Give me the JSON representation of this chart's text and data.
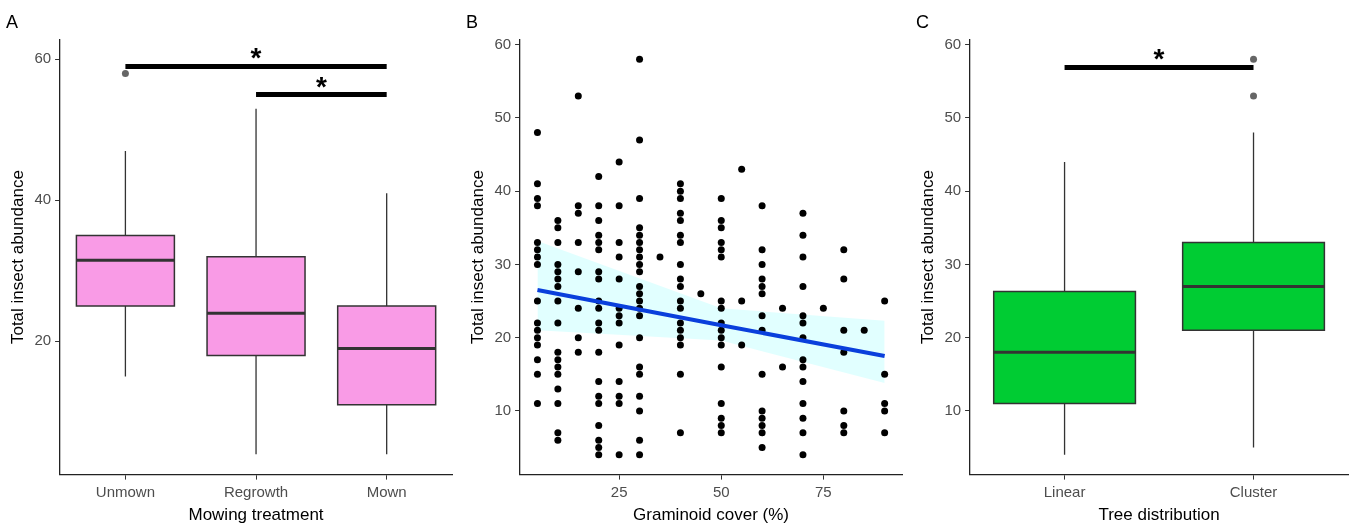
{
  "chart_data": [
    {
      "type": "box",
      "title": "A",
      "xlabel": "Mowing treatment",
      "ylabel": "Total insect abundance",
      "categories": [
        "Unmown",
        "Regrowth",
        "Mown"
      ],
      "series": [
        {
          "color": "#f99be6",
          "boxes": [
            {
              "low": 15,
              "q1": 25,
              "median": 31.5,
              "q3": 35,
              "high": 47,
              "outliers": [
                58
              ]
            },
            {
              "low": 4,
              "q1": 18,
              "median": 24,
              "q3": 32,
              "high": 53
            },
            {
              "low": 4,
              "q1": 11,
              "median": 19,
              "q3": 25,
              "high": 41
            }
          ]
        }
      ],
      "ylim": [
        1.1,
        62.8
      ],
      "yticks": [
        20,
        40,
        60
      ],
      "grid": false,
      "annotations": [
        "*",
        "*"
      ]
    },
    {
      "type": "scatter",
      "title": "B",
      "xlabel": "Graminoid cover (%)",
      "ylabel": "Total insect abundance",
      "series": [
        {
          "type": "scatter",
          "color": "#000000",
          "x": [
            5,
            5,
            5,
            5,
            5,
            5,
            5,
            5,
            5,
            5,
            5,
            5,
            5,
            5,
            5,
            5,
            10,
            10,
            10,
            10,
            10,
            10,
            10,
            10,
            10,
            10,
            10,
            10,
            10,
            10,
            10,
            10,
            10,
            15,
            15,
            15,
            15,
            15,
            15,
            15,
            15,
            20,
            20,
            20,
            20,
            20,
            20,
            20,
            20,
            20,
            20,
            20,
            20,
            20,
            20,
            20,
            20,
            20,
            20,
            20,
            20,
            25,
            25,
            25,
            25,
            25,
            25,
            25,
            25,
            25,
            25,
            25,
            25,
            25,
            30,
            30,
            30,
            30,
            30,
            30,
            30,
            30,
            30,
            30,
            30,
            30,
            30,
            30,
            30,
            30,
            30,
            30,
            30,
            30,
            30,
            30,
            35,
            40,
            40,
            40,
            40,
            40,
            40,
            40,
            40,
            40,
            40,
            40,
            40,
            40,
            40,
            40,
            40,
            40,
            40,
            45,
            50,
            50,
            50,
            50,
            50,
            50,
            50,
            50,
            50,
            50,
            50,
            50,
            50,
            50,
            50,
            50,
            50,
            55,
            55,
            55,
            60,
            60,
            60,
            60,
            60,
            60,
            60,
            60,
            60,
            60,
            60,
            60,
            60,
            60,
            65,
            65,
            70,
            70,
            70,
            70,
            70,
            70,
            70,
            70,
            70,
            70,
            70,
            70,
            70,
            70,
            75,
            80,
            80,
            80,
            80,
            80,
            80,
            80,
            85,
            90,
            90,
            90,
            90,
            90
          ],
          "values": [
            48,
            41,
            39,
            38,
            33,
            32,
            31,
            30,
            25,
            22,
            21,
            20,
            19,
            17,
            15,
            11,
            36,
            35,
            33,
            30,
            29,
            28,
            27,
            25,
            22,
            18,
            17,
            16,
            15,
            13,
            11,
            7,
            6,
            53,
            38,
            37,
            33,
            29,
            24,
            20,
            18,
            42,
            38,
            36,
            34,
            33,
            32,
            29,
            28,
            25,
            24,
            22,
            21,
            18,
            14,
            12,
            11,
            8,
            6,
            5,
            4,
            44,
            38,
            33,
            31,
            28,
            24,
            23,
            22,
            19,
            14,
            12,
            11,
            4,
            58,
            47,
            39,
            35,
            34,
            33,
            32,
            31,
            30,
            29,
            27,
            26,
            25,
            24,
            23,
            20,
            16,
            15,
            12,
            10,
            6,
            4,
            31,
            41,
            40,
            39,
            37,
            36,
            34,
            33,
            30,
            28,
            27,
            25,
            24,
            22,
            21,
            20,
            19,
            15,
            7,
            26,
            39,
            36,
            35,
            33,
            32,
            31,
            25,
            24,
            22,
            21,
            20,
            19,
            16,
            11,
            9,
            8,
            7,
            43,
            25,
            19,
            38,
            32,
            30,
            28,
            27,
            26,
            23,
            21,
            15,
            10,
            9,
            8,
            7,
            5,
            24,
            16,
            37,
            34,
            31,
            27,
            23,
            22,
            20,
            17,
            16,
            14,
            11,
            9,
            7,
            4,
            24,
            32,
            28,
            21,
            18,
            10,
            8,
            7,
            21,
            25,
            15,
            11,
            10,
            7
          ]
        },
        {
          "type": "line",
          "color": "#0a3fdc",
          "x": [
            5,
            50,
            90
          ],
          "values": [
            26.5,
            21.7,
            17.5
          ],
          "lower": [
            21,
            19.6,
            13.8
          ],
          "upper": [
            33.2,
            24,
            22.3
          ]
        }
      ],
      "xlim": [
        0.75,
        94.25
      ],
      "xticks": [
        25,
        50,
        75
      ],
      "ylim": [
        1.3,
        60.7
      ],
      "yticks": [
        10,
        20,
        30,
        40,
        50,
        60
      ],
      "grid": false
    },
    {
      "type": "box",
      "title": "C",
      "xlabel": "Tree distribution",
      "ylabel": "Total insect abundance",
      "categories": [
        "Linear",
        "Cluster"
      ],
      "series": [
        {
          "color": "#00cc33",
          "boxes": [
            {
              "low": 4,
              "q1": 11,
              "median": 18,
              "q3": 26.3,
              "high": 44
            },
            {
              "low": 5,
              "q1": 21,
              "median": 27,
              "q3": 33,
              "high": 48,
              "outliers": [
                58,
                53
              ]
            }
          ]
        }
      ],
      "ylim": [
        1.3,
        60.7
      ],
      "yticks": [
        10,
        20,
        30,
        40,
        50,
        60
      ],
      "grid": false,
      "annotations": [
        "*"
      ]
    }
  ]
}
